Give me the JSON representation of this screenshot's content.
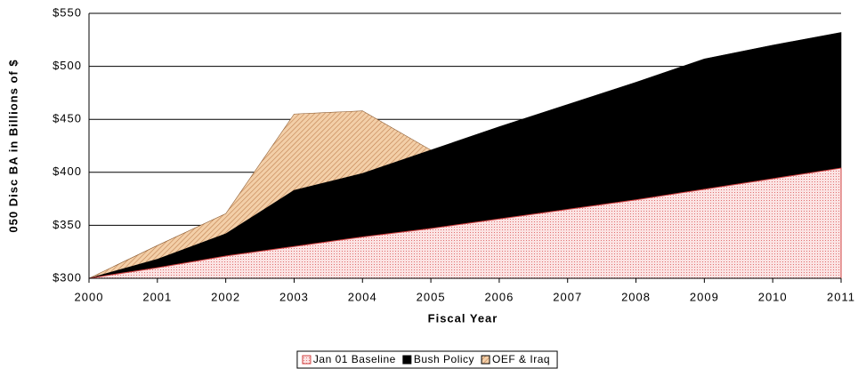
{
  "chart_data": {
    "type": "area",
    "x_label": "Fiscal Year",
    "y_label": "050 Disc BA in Billions of $",
    "x": [
      2000,
      2001,
      2002,
      2003,
      2004,
      2005,
      2006,
      2007,
      2008,
      2009,
      2010,
      2011
    ],
    "xlim": [
      2000,
      2011
    ],
    "xticks": [
      2000,
      2001,
      2002,
      2003,
      2004,
      2005,
      2006,
      2007,
      2008,
      2009,
      2010,
      2011
    ],
    "ylim": [
      300,
      550
    ],
    "yticks": [
      {
        "value": 300,
        "label": "$300"
      },
      {
        "value": 350,
        "label": "$350"
      },
      {
        "value": 400,
        "label": "$400"
      },
      {
        "value": 450,
        "label": "$450"
      },
      {
        "value": 500,
        "label": "$500"
      },
      {
        "value": 550,
        "label": "$550"
      }
    ],
    "grid": true,
    "legend": "bottom",
    "series": [
      {
        "name": "Jan 01 Baseline",
        "color": "#f2b6b6",
        "values": [
          300,
          310,
          321,
          330,
          339,
          347,
          356,
          365,
          374,
          384,
          394,
          404
        ]
      },
      {
        "name": "Bush Policy",
        "color": "#000000",
        "values": [
          300,
          318,
          342,
          383,
          399,
          421,
          443,
          464,
          485,
          507,
          520,
          532
        ]
      },
      {
        "name": "OEF & Iraq",
        "color": "#e8b888",
        "values": [
          300,
          331,
          361,
          455,
          458,
          421,
          null,
          null,
          null,
          null,
          null,
          null
        ]
      }
    ]
  }
}
